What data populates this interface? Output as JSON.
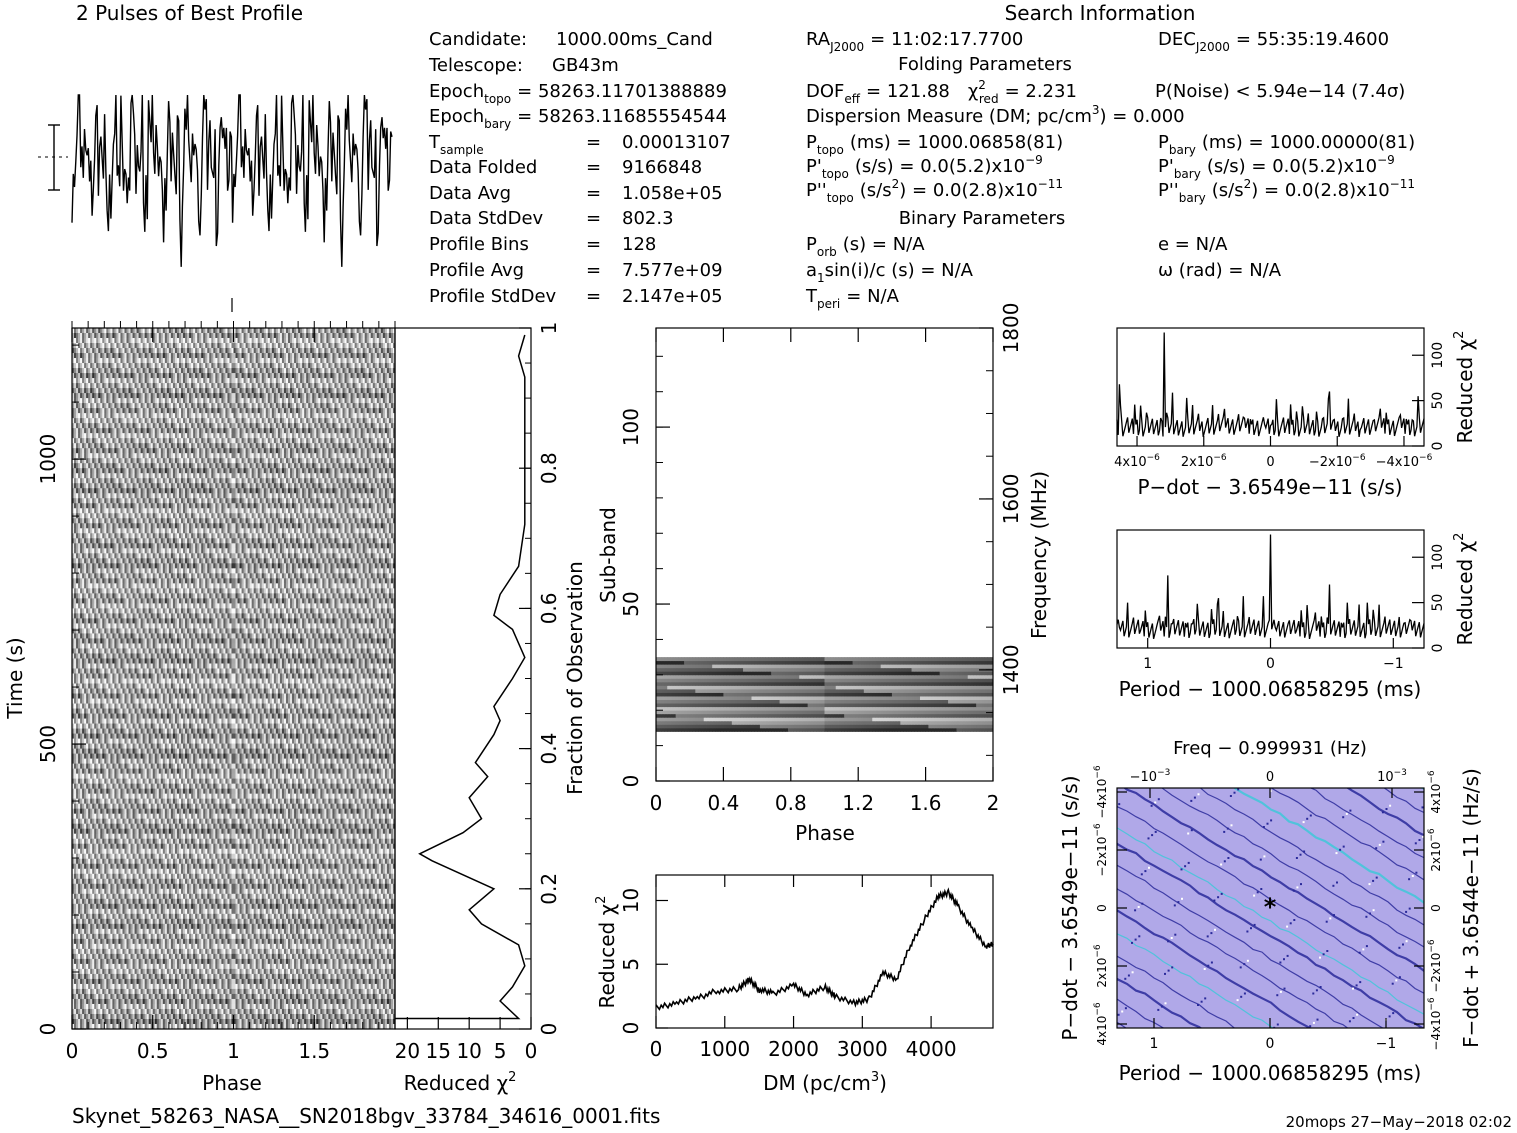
{
  "title_profile": "2 Pulses of Best Profile",
  "title_search": "Search Information",
  "info_left": [
    {
      "label": "Candidate:",
      "value": "1000.00ms_Cand"
    },
    {
      "label": "Telescope:",
      "value": "GB43m"
    },
    {
      "label": "Epoch",
      "sub": "topo",
      "value": "= 58263.11701388889"
    },
    {
      "label": "Epoch",
      "sub": "bary",
      "value": "= 58263.11685554544"
    },
    {
      "label": "T",
      "sub": "sample",
      "value": "0.00013107"
    },
    {
      "label": "Data Folded",
      "value": "9166848"
    },
    {
      "label": "Data Avg",
      "value": "1.058e+05"
    },
    {
      "label": "Data StdDev",
      "value": "802.3"
    },
    {
      "label": "Profile Bins",
      "value": "128"
    },
    {
      "label": "Profile Avg",
      "value": "7.577e+09"
    },
    {
      "label": "Profile StdDev",
      "value": "2.147e+05"
    }
  ],
  "info_right": {
    "ra": "RA",
    "ra_sub": "J2000",
    "ra_value": "= 11:02:17.7700",
    "dec": "DEC",
    "dec_sub": "J2000",
    "dec_value": "= 55:35:19.4600",
    "folding_header": "Folding Parameters",
    "dof": "DOF",
    "dof_sub": "eff",
    "dof_value": "= 121.88",
    "chi": "χ",
    "chi_sub": "red",
    "chi_value": "= 2.231",
    "pnoise": "P(Noise) < 5.94e−14   (7.4σ)",
    "dm_line": "Dispersion Measure (DM; pc/cm",
    "dm_value": ") = 0.000",
    "ptopo": "P",
    "ptopo_sub": "topo",
    "ptopo_value": "(ms) =   1000.06858(81)",
    "pbary": "P",
    "pbary_sub": "bary",
    "pbary_value": "(ms) =   1000.00000(81)",
    "pdtopo_value": "(s/s) = 0.0(5.2)x10",
    "pdtopo_exp": "−9",
    "pdbary_value": "(s/s) = 0.0(5.2)x10",
    "pdbary_exp": "−9",
    "pddtopo_value": "(s/s",
    "pddtopo_value2": ") = 0.0(2.8)x10",
    "pddtopo_exp": "−11",
    "pddbary_value2": ") = 0.0(2.8)x10",
    "pddbary_exp": "−11",
    "binary_header": "Binary Parameters",
    "porb": "P",
    "porb_sub": "orb",
    "porb_value": "(s) = N/A",
    "ecc": "e = N/A",
    "a1": "a",
    "a1_sub": "1",
    "a1_value": "sin(i)/c (s) = N/A",
    "omega": "ω (rad) = N/A",
    "tperi": "T",
    "tperi_sub": "peri",
    "tperi_value": "= N/A"
  },
  "footer_file": "Skynet_58263_NASA__SN2018bgv_33784_34616_0001.fits",
  "footer_stamp": "20mops 27−May−2018 02:02",
  "colors": {
    "ppdot_bg": "#b0a8e8",
    "ppdot_line": "#2a2a9a",
    "ppdot_hot": "#40c8d8"
  },
  "chart_data": [
    {
      "type": "line",
      "name": "profile",
      "title": "2 Pulses of Best Profile",
      "x_range": [
        0,
        2
      ],
      "bins": 256
    },
    {
      "type": "heatmap",
      "name": "time-phase",
      "xlabel": "Phase",
      "ylabel": "Time (s)",
      "xlim": [
        0,
        2
      ],
      "ylim": [
        0,
        1230
      ],
      "xticks": [
        "0",
        "0.5",
        "1",
        "1.5"
      ],
      "yticks": [
        "0",
        "500",
        "1000"
      ]
    },
    {
      "type": "line",
      "name": "reduced-chi2-vs-fraction",
      "xlabel": "Reduced χ",
      "ylabel": "Fraction of Observation",
      "xlim": [
        22,
        0
      ],
      "ylim": [
        0,
        1
      ],
      "xticks": [
        "20",
        "15",
        "10",
        "5",
        "0"
      ],
      "xticks_shown": [
        "20",
        "15",
        "10",
        "5",
        "0"
      ],
      "yticks": [
        "0",
        "0.2",
        "0.4",
        "0.6",
        "0.8",
        "1"
      ],
      "points": [
        [
          2,
          0.015
        ],
        [
          5,
          0.04
        ],
        [
          3,
          0.06
        ],
        [
          1,
          0.09
        ],
        [
          2,
          0.12
        ],
        [
          8,
          0.15
        ],
        [
          10,
          0.17
        ],
        [
          6,
          0.2
        ],
        [
          16,
          0.24
        ],
        [
          18,
          0.25
        ],
        [
          11,
          0.28
        ],
        [
          8,
          0.3
        ],
        [
          10,
          0.33
        ],
        [
          7,
          0.36
        ],
        [
          9,
          0.38
        ],
        [
          6,
          0.42
        ],
        [
          5,
          0.44
        ],
        [
          6,
          0.46
        ],
        [
          3,
          0.5
        ],
        [
          1,
          0.53
        ],
        [
          3,
          0.57
        ],
        [
          6,
          0.59
        ],
        [
          5,
          0.62
        ],
        [
          2,
          0.66
        ],
        [
          1,
          0.72
        ],
        [
          1,
          0.85
        ],
        [
          1,
          0.93
        ],
        [
          2,
          0.96
        ],
        [
          1,
          0.99
        ]
      ]
    },
    {
      "type": "heatmap",
      "name": "subband-phase",
      "xlabel": "Phase",
      "ylabel": "Sub-band",
      "y2label": "Frequency (MHz)",
      "xlim": [
        0,
        2
      ],
      "ylim": [
        0,
        128
      ],
      "xticks": [
        "0",
        "0.4",
        "0.8",
        "1.2",
        "1.6",
        "2"
      ],
      "yticks": [
        "0",
        "50",
        "100"
      ],
      "y2ticks": [
        "1400",
        "1600",
        "1800"
      ],
      "band_range": [
        14,
        35
      ]
    },
    {
      "type": "line",
      "name": "dm-chi2",
      "xlabel": "DM (pc/cm",
      "xlabel_exp": "3",
      "xlabel_end": ")",
      "ylabel": "Reduced χ",
      "xlim": [
        0,
        4900
      ],
      "ylim": [
        0,
        12
      ],
      "xticks": [
        "0",
        "1000",
        "2000",
        "3000",
        "4000"
      ],
      "yticks": [
        "0",
        "5",
        "10"
      ],
      "points": [
        [
          0,
          1.6
        ],
        [
          300,
          1.9
        ],
        [
          600,
          2.4
        ],
        [
          900,
          2.9
        ],
        [
          1200,
          3.1
        ],
        [
          1350,
          3.8
        ],
        [
          1500,
          3.0
        ],
        [
          1700,
          2.7
        ],
        [
          2000,
          3.4
        ],
        [
          2200,
          2.6
        ],
        [
          2450,
          3.2
        ],
        [
          2600,
          2.5
        ],
        [
          2900,
          2.0
        ],
        [
          3100,
          2.3
        ],
        [
          3300,
          4.3
        ],
        [
          3500,
          3.8
        ],
        [
          3700,
          6.5
        ],
        [
          3900,
          8.5
        ],
        [
          4100,
          10.3
        ],
        [
          4250,
          10.6
        ],
        [
          4400,
          9.5
        ],
        [
          4600,
          7.8
        ],
        [
          4800,
          6.4
        ],
        [
          4900,
          6.6
        ]
      ]
    },
    {
      "type": "line",
      "name": "pdot-chi2",
      "xlabel": "P−dot − 3.6549e−11 (s/s)",
      "ylabel": "Reduced χ",
      "xlim": [
        4.6e-06,
        -4.6e-06
      ],
      "ylim": [
        0,
        130
      ],
      "xticks": [
        "4x10",
        "2x10",
        "0",
        "−2x10",
        "−4x10"
      ],
      "xtick_exp": "−6",
      "yticks": [
        "0",
        "50",
        "100"
      ]
    },
    {
      "type": "line",
      "name": "period-chi2",
      "xlabel": "Period − 1000.06858295 (ms)",
      "ylabel": "Reduced χ",
      "xlim": [
        1.25,
        -1.25
      ],
      "ylim": [
        0,
        130
      ],
      "xticks": [
        "1",
        "0",
        "−1"
      ],
      "yticks": [
        "0",
        "50",
        "100"
      ]
    },
    {
      "type": "heatmap",
      "name": "period-pdot",
      "title": "Freq − 0.999931 (Hz)",
      "xlabel": "Period − 1000.06858295 (ms)",
      "ylabel": "P−dot − 3.6549e−11 (s/s)",
      "y2label": "F−dot + 3.6544e−11 (Hz/s)",
      "top_ticks": [
        "−10",
        "0",
        "10"
      ],
      "top_exp": "−3",
      "xticks": [
        "1",
        "0",
        "−1"
      ],
      "yticks": [
        "4x10",
        "2x10",
        "0",
        "−2x10",
        "−4x10"
      ],
      "ytick_exp": "−6",
      "y2ticks": [
        "−4x10",
        "−2x10",
        "0",
        "2x10",
        "4x10"
      ],
      "y2tick_exp": "−6"
    }
  ]
}
